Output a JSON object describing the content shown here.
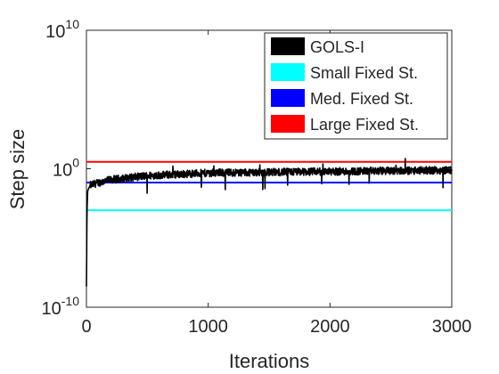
{
  "chart_data": {
    "type": "line",
    "xlabel": "Iterations",
    "ylabel": "Step size",
    "xlim": [
      0,
      3000
    ],
    "ylim_exponent": [
      -10,
      10
    ],
    "y_scale": "log",
    "x_ticks": [
      "0",
      "1000",
      "2000",
      "3000"
    ],
    "y_tick_base": "10",
    "y_ticks": [
      {
        "exponent": -10,
        "label": "-10"
      },
      {
        "exponent": 0,
        "label": "0"
      },
      {
        "exponent": 10,
        "label": "10"
      }
    ],
    "grid": false,
    "legend_position": "top-right",
    "series": [
      {
        "name": "GOLS-I",
        "color": "#000000",
        "kind": "noisy",
        "points_log10": [
          [
            0,
            -8.5
          ],
          [
            5,
            -3.0
          ],
          [
            10,
            -1.6
          ],
          [
            30,
            -1.2
          ],
          [
            100,
            -1.0
          ],
          [
            200,
            -0.8
          ],
          [
            500,
            -0.5
          ],
          [
            1000,
            -0.3
          ],
          [
            1500,
            -0.25
          ],
          [
            2000,
            -0.2
          ],
          [
            2500,
            -0.15
          ],
          [
            3000,
            -0.1
          ]
        ]
      },
      {
        "name": "Small Fixed St.",
        "color": "#00ffff",
        "kind": "constant",
        "log10": -3.0
      },
      {
        "name": "Med. Fixed St.",
        "color": "#0000ff",
        "kind": "constant",
        "log10": -1.0
      },
      {
        "name": "Large Fixed St.",
        "color": "#ff0000",
        "kind": "constant",
        "log10": 0.5
      }
    ]
  }
}
